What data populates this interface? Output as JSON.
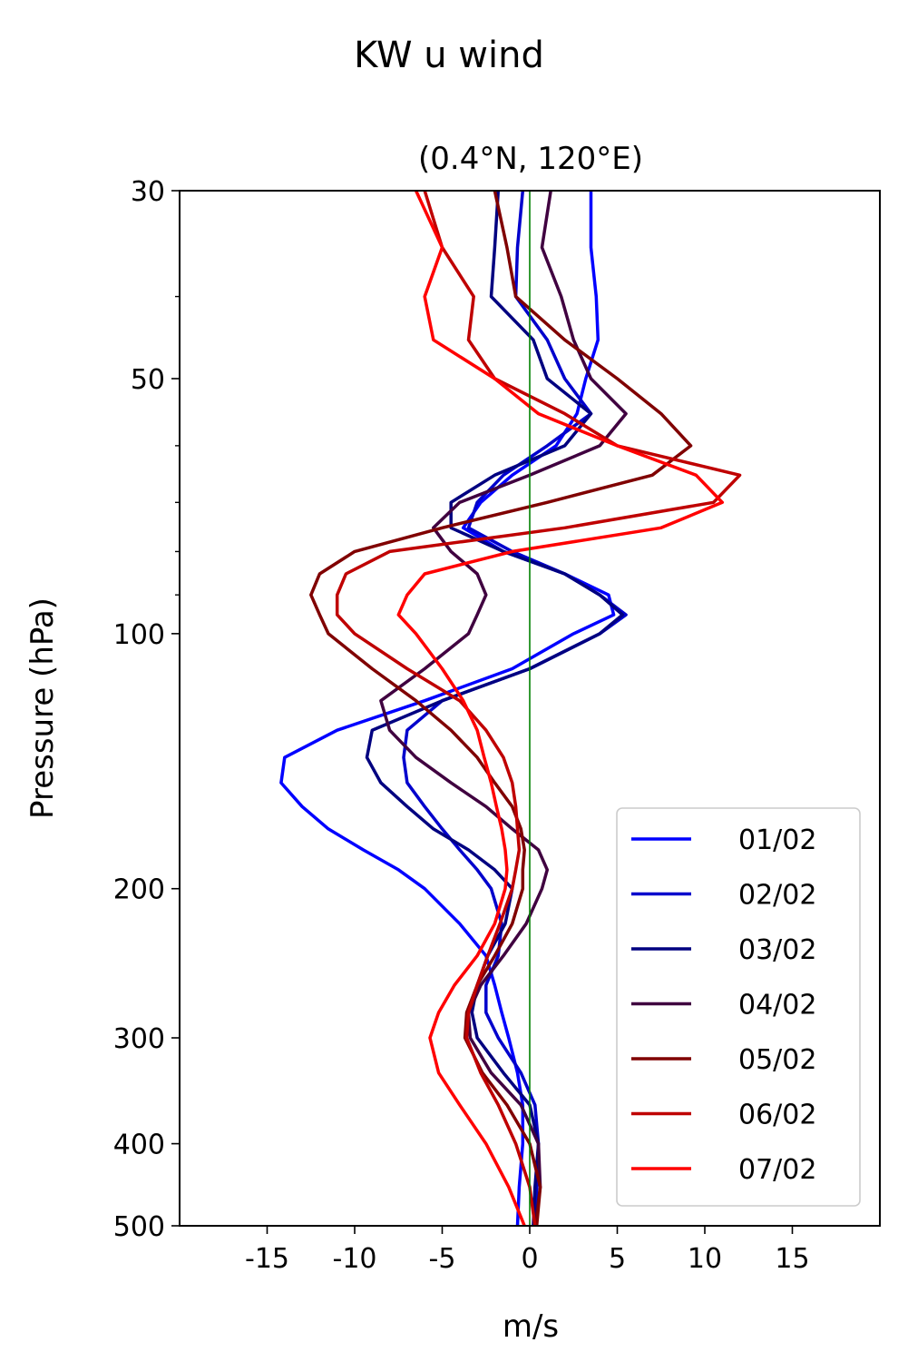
{
  "chart_data": {
    "type": "line",
    "suptitle": "KW u wind",
    "title": "(0.4°N, 120°E)",
    "xlabel": "m/s",
    "ylabel": "Pressure (hPa)",
    "xlim": [
      -20,
      20
    ],
    "ylim": [
      500,
      30
    ],
    "yscale": "log",
    "x_ticks": [
      -15,
      -10,
      -5,
      0,
      5,
      10,
      15
    ],
    "x_tick_labels": [
      "-15",
      "-10",
      "-5",
      "0",
      "5",
      "10",
      "15"
    ],
    "y_ticks": [
      30,
      50,
      100,
      200,
      300,
      400,
      500
    ],
    "y_tick_labels": [
      "30",
      "50",
      "100",
      "200",
      "300",
      "400",
      "500"
    ],
    "y_minor_ticks": [
      40,
      60,
      70,
      80,
      90
    ],
    "reference_line": {
      "x": 0,
      "color": "#008000"
    },
    "legend_position": "lower-right",
    "pressure_levels": [
      30,
      35,
      40,
      45,
      50,
      55,
      60,
      65,
      70,
      75,
      80,
      85,
      90,
      95,
      100,
      110,
      120,
      130,
      140,
      150,
      160,
      170,
      180,
      190,
      200,
      220,
      240,
      260,
      280,
      300,
      330,
      360,
      400,
      450,
      500
    ],
    "series": [
      {
        "name": "01/02",
        "color": "#0000ff",
        "values": [
          3.5,
          3.5,
          3.8,
          3.9,
          3.2,
          2.7,
          1.5,
          -1.0,
          -2.8,
          -3.8,
          -1.5,
          2.0,
          4.5,
          4.8,
          2.5,
          -1.0,
          -6.0,
          -11.0,
          -14.0,
          -14.2,
          -13.0,
          -11.5,
          -9.5,
          -7.5,
          -6.0,
          -4.0,
          -2.5,
          -2.0,
          -1.6,
          -1.2,
          -0.7,
          -0.4,
          -0.4,
          -0.6,
          -0.7
        ]
      },
      {
        "name": "02/02",
        "color": "#0000cc",
        "values": [
          -0.4,
          -0.7,
          -0.8,
          1.0,
          2.0,
          3.5,
          1.0,
          -1.5,
          -3.0,
          -3.5,
          -1.0,
          2.0,
          4.0,
          5.5,
          4.0,
          0.0,
          -5.0,
          -7.0,
          -7.2,
          -7.0,
          -6.0,
          -5.0,
          -4.0,
          -3.0,
          -2.2,
          -1.6,
          -1.8,
          -2.5,
          -2.5,
          -1.8,
          -0.5,
          0.3,
          0.5,
          0.4,
          0.3
        ]
      },
      {
        "name": "03/02",
        "color": "#000080",
        "values": [
          -1.8,
          -2.0,
          -2.2,
          0.2,
          1.0,
          3.5,
          2.0,
          -2.0,
          -4.5,
          -4.5,
          -1.5,
          2.0,
          4.0,
          5.3,
          4.0,
          0.0,
          -5.0,
          -9.0,
          -9.3,
          -8.5,
          -7.0,
          -5.5,
          -3.5,
          -2.0,
          -1.0,
          -1.4,
          -2.4,
          -3.0,
          -3.3,
          -3.0,
          -1.5,
          0.0,
          0.5,
          0.3,
          0.2
        ]
      },
      {
        "name": "04/02",
        "color": "#400040",
        "values": [
          1.2,
          0.7,
          1.8,
          2.5,
          3.5,
          5.5,
          4.0,
          0.0,
          -4.0,
          -5.5,
          -4.5,
          -3.0,
          -2.5,
          -3.0,
          -3.5,
          -6.0,
          -8.5,
          -8.0,
          -6.5,
          -4.5,
          -2.5,
          -1.0,
          0.5,
          1.0,
          0.7,
          -0.2,
          -1.5,
          -2.8,
          -3.5,
          -3.4,
          -2.2,
          -0.5,
          0.5,
          0.6,
          0.3
        ]
      },
      {
        "name": "05/02",
        "color": "#800000",
        "values": [
          -2.0,
          -1.3,
          -0.8,
          2.0,
          5.0,
          7.5,
          9.2,
          7.0,
          1.0,
          -5.0,
          -10.0,
          -12.0,
          -12.5,
          -12.0,
          -11.5,
          -9.0,
          -6.5,
          -4.5,
          -3.0,
          -2.0,
          -1.0,
          -0.5,
          -0.3,
          -0.4,
          -0.4,
          -1.0,
          -2.0,
          -3.0,
          -3.6,
          -3.7,
          -2.7,
          -1.3,
          0.0,
          0.6,
          0.4
        ]
      },
      {
        "name": "06/02",
        "color": "#bf0000",
        "values": [
          -6.0,
          -5.0,
          -3.2,
          -3.5,
          -2.0,
          2.0,
          5.0,
          12.0,
          10.5,
          2.0,
          -8.0,
          -10.5,
          -11.0,
          -11.0,
          -10.0,
          -7.0,
          -4.0,
          -2.5,
          -1.5,
          -1.0,
          -0.8,
          -0.7,
          -0.6,
          -0.8,
          -1.0,
          -1.7,
          -2.4,
          -3.0,
          -3.5,
          -3.6,
          -2.8,
          -1.8,
          -0.8,
          0.0,
          0.3
        ]
      },
      {
        "name": "07/02",
        "color": "#ff0000",
        "values": [
          -6.5,
          -5.0,
          -6.0,
          -5.5,
          -2.0,
          0.5,
          5.0,
          9.5,
          11.0,
          7.5,
          -1.0,
          -6.0,
          -7.0,
          -7.5,
          -6.5,
          -5.0,
          -3.8,
          -3.0,
          -2.6,
          -2.2,
          -1.9,
          -1.6,
          -1.4,
          -1.3,
          -1.4,
          -2.0,
          -3.0,
          -4.3,
          -5.2,
          -5.7,
          -5.2,
          -4.0,
          -2.5,
          -1.2,
          -0.3
        ]
      }
    ]
  }
}
